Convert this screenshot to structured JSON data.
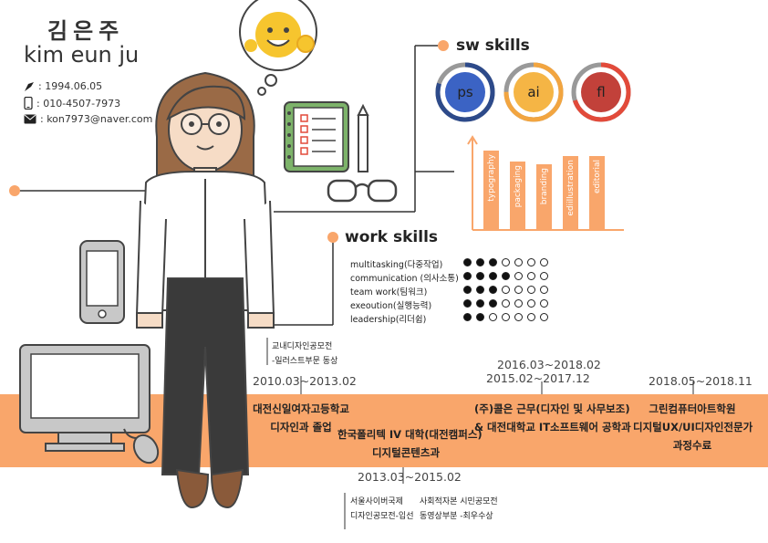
{
  "profile": {
    "name_ko": "김은주",
    "name_en": "kim eun ju",
    "birth": ": 1994.06.05",
    "phone": ": 010-4507-7973",
    "email": ": kon7973@naver.com"
  },
  "colors": {
    "accent": "#f9a66b",
    "orange_bar": "#f9a66b",
    "ps": "#2d4a8a",
    "ai": "#f2a540",
    "fl": "#c24030"
  },
  "sw_skills": {
    "title": "sw skills",
    "tools": [
      {
        "label": "ps",
        "level": 0.8
      },
      {
        "label": "ai",
        "level": 0.75
      },
      {
        "label": "fl",
        "level": 0.7
      }
    ],
    "bars": [
      {
        "label": "typography",
        "value": 0.95
      },
      {
        "label": "packaging",
        "value": 0.82
      },
      {
        "label": "branding",
        "value": 0.78
      },
      {
        "label": "ediillustration",
        "value": 0.88
      },
      {
        "label": "editorial",
        "value": 0.88
      }
    ]
  },
  "work_skills": {
    "title": "work skills",
    "items": [
      {
        "label": "multitasking(다중작업)",
        "filled": 3,
        "total": 7
      },
      {
        "label": "communication (의사소통)",
        "filled": 4,
        "total": 7
      },
      {
        "label": "team work(팀워크)",
        "filled": 3,
        "total": 7
      },
      {
        "label": "exeoution(실행능력)",
        "filled": 3,
        "total": 7
      },
      {
        "label": "leadership(리더쉽)",
        "filled": 2,
        "total": 7
      }
    ]
  },
  "timeline": {
    "award1": [
      "교내디자인공모전",
      "-일러스트부문 동상"
    ],
    "d1": "2010.03~2013.02",
    "t1": [
      "대전신일여자고등학교",
      "디자인과 졸업"
    ],
    "d2": "2013.03~2015.02",
    "t2": [
      "한국폴리텍 IV 대학(대전캠퍼스)",
      "디지털콘텐츠과"
    ],
    "award2a": [
      "서울사이버국제",
      "디자인공모전-입선"
    ],
    "award2b": [
      "사회적자본 시민공모전",
      "동영상부분 -최우수상"
    ],
    "d3a": "2016.03~2018.02",
    "d3b": "2015.02~2017.12",
    "t3": [
      "(주)콜은 근무(디자인 및 사무보조)",
      "& 대전대학교 IT소프트웨어 공학과"
    ],
    "d4": "2018.05~2018.11",
    "t4": [
      "그린컴퓨터아트학원",
      "디지털UX/UI디자인전문가",
      "과정수료"
    ]
  }
}
